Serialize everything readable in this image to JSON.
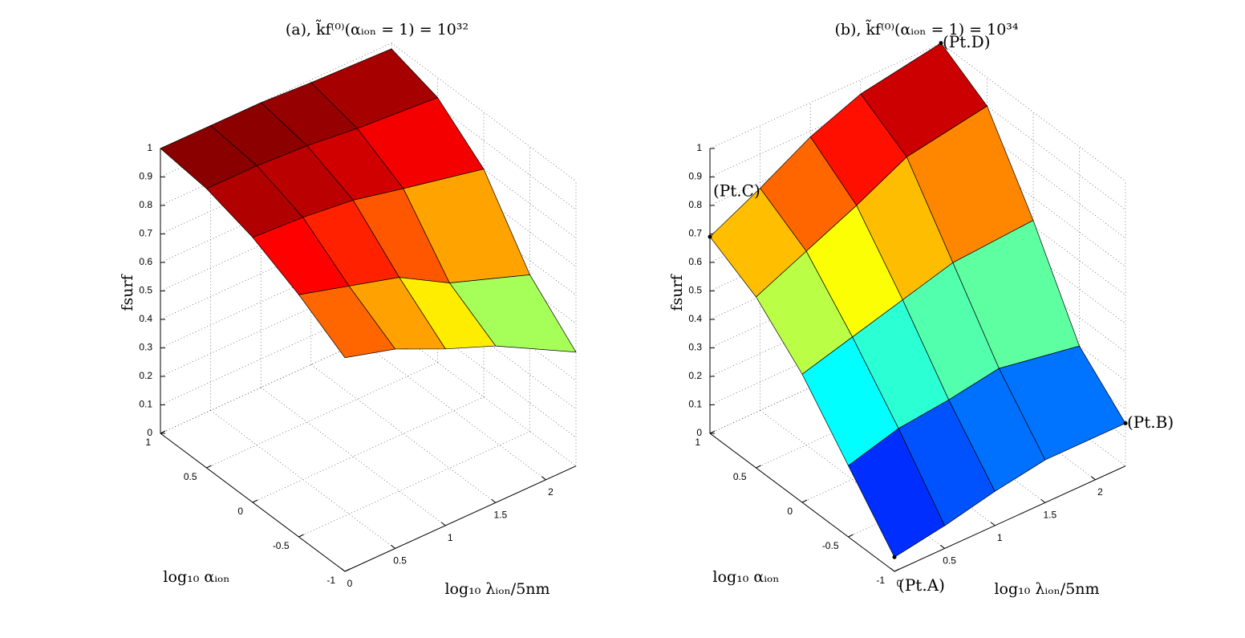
{
  "chart_data": [
    {
      "type": "surface",
      "title": "(a), k̃f⁽⁰⁾(αᵢₒₙ = 1) = 10³²",
      "xlabel": "log₁₀ λᵢₒₙ/5nm",
      "ylabel": "log₁₀ αᵢₒₙ",
      "zlabel": "fsurf",
      "x": [
        0,
        0.5,
        1,
        1.5,
        2.3
      ],
      "y": [
        1,
        0.5,
        0,
        -0.5,
        -1
      ],
      "z": [
        [
          1,
          1,
          1,
          0.99,
          0.98
        ],
        [
          0.98,
          0.98,
          0.97,
          0.95,
          0.93
        ],
        [
          0.93,
          0.92,
          0.9,
          0.86,
          0.8
        ],
        [
          0.85,
          0.8,
          0.75,
          0.65,
          0.55
        ],
        [
          0.75,
          0.7,
          0.62,
          0.55,
          0.4
        ]
      ],
      "xlim": [
        0,
        2.3
      ],
      "ylim": [
        -1,
        1
      ],
      "zlim": [
        0,
        1
      ],
      "xticks": [
        0,
        0.5,
        1,
        1.5,
        2
      ],
      "yticks": [
        -1,
        -0.5,
        0,
        0.5,
        1
      ],
      "zticks": [
        0,
        0.1,
        0.2,
        0.3,
        0.4,
        0.5,
        0.6,
        0.7,
        0.8,
        0.9,
        1
      ],
      "colormap": "jet",
      "clim": [
        0,
        1
      ],
      "grid": true
    },
    {
      "type": "surface",
      "title": "(b), k̃f⁽⁰⁾(αᵢₒₙ = 1) = 10³⁴",
      "xlabel": "log₁₀ λᵢₒₙ/5nm",
      "ylabel": "log₁₀ αᵢₒₙ",
      "zlabel": "fsurf",
      "x": [
        0,
        0.5,
        1,
        1.5,
        2.3
      ],
      "y": [
        1,
        0.5,
        0,
        -0.5,
        -1
      ],
      "z": [
        [
          0.69,
          0.78,
          0.88,
          0.95,
          1.0
        ],
        [
          0.6,
          0.68,
          0.76,
          0.85,
          0.9
        ],
        [
          0.45,
          0.5,
          0.55,
          0.6,
          0.62
        ],
        [
          0.25,
          0.3,
          0.32,
          0.35,
          0.3
        ],
        [
          0.05,
          0.08,
          0.12,
          0.15,
          0.15
        ]
      ],
      "xlim": [
        0,
        2.3
      ],
      "ylim": [
        -1,
        1
      ],
      "zlim": [
        0,
        1
      ],
      "xticks": [
        0,
        0.5,
        1,
        1.5,
        2
      ],
      "yticks": [
        -1,
        -0.5,
        0,
        0.5,
        1
      ],
      "zticks": [
        0,
        0.1,
        0.2,
        0.3,
        0.4,
        0.5,
        0.6,
        0.7,
        0.8,
        0.9,
        1
      ],
      "colormap": "jet",
      "clim": [
        0,
        1
      ],
      "grid": true,
      "annotations": [
        {
          "text": "(Pt.A)",
          "x": 0,
          "y": -1,
          "z": 0.05,
          "position": "below"
        },
        {
          "text": "(Pt.B)",
          "x": 2.3,
          "y": -1,
          "z": 0.15,
          "position": "right"
        },
        {
          "text": "(Pt.C)",
          "x": 0,
          "y": 1,
          "z": 0.69,
          "position": "above"
        },
        {
          "text": "(Pt.D)",
          "x": 2.3,
          "y": 1,
          "z": 1.0,
          "position": "right"
        }
      ]
    }
  ]
}
